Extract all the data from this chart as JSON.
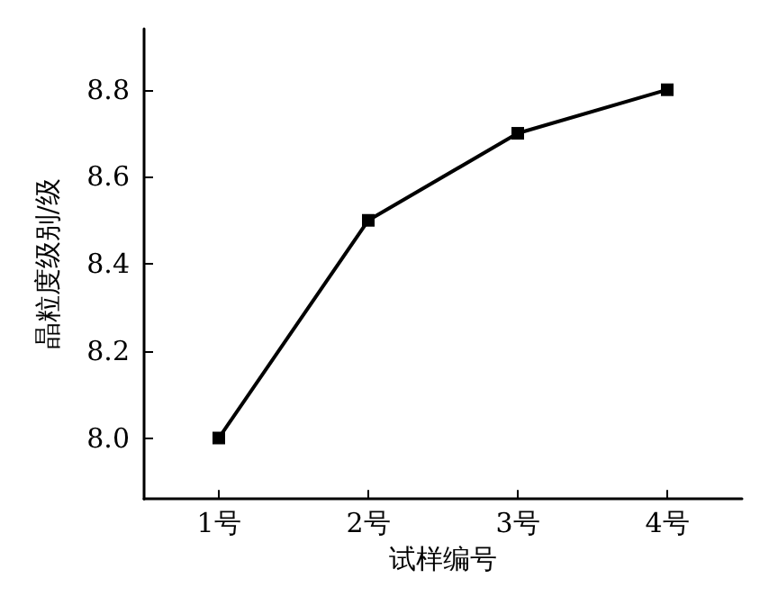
{
  "chart_data": {
    "type": "line",
    "xlabel": "试样编号",
    "ylabel": "晶粒度级别/级",
    "categories": [
      "1号",
      "2号",
      "3号",
      "4号"
    ],
    "series": [
      {
        "color": "#000000",
        "values": [
          8.0,
          8.5,
          8.7,
          8.8
        ]
      }
    ],
    "ylim": [
      7.86,
      8.94
    ],
    "yticks": [
      {
        "value": 8.0,
        "label": "8.0"
      },
      8.2,
      8.4,
      8.6,
      8.8
    ],
    "marker": "square",
    "line_style": "solid",
    "grid": false
  }
}
